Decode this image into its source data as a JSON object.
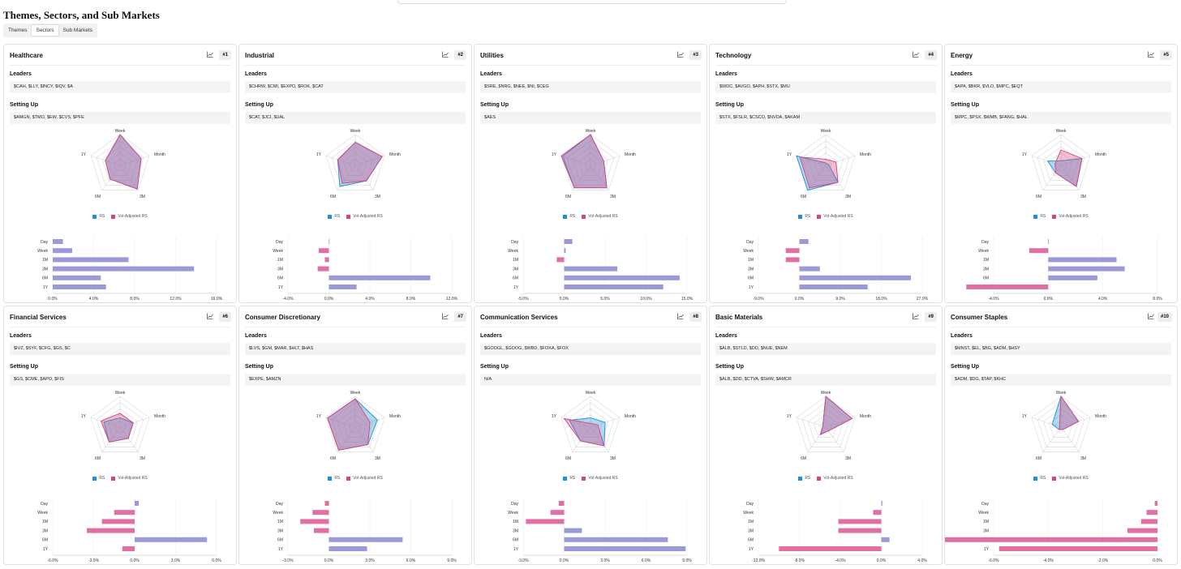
{
  "page": {
    "title": "Themes, Sectors, and Sub Markets",
    "tabs": [
      "Themes",
      "Sectors",
      "Sub Markets"
    ],
    "active_tab": "Sectors"
  },
  "labels": {
    "leaders": "Leaders",
    "setting_up": "Setting Up",
    "legend_rs": "RS",
    "legend_vol": "Vol-Adjusted RS",
    "axes": [
      "Week",
      "Month",
      "3M",
      "6M",
      "1Y"
    ],
    "periods": [
      "Day",
      "Week",
      "1M",
      "3M",
      "6M",
      "1Y"
    ]
  },
  "colors": {
    "rs": "#1f8fd6",
    "vol": "#d6457f",
    "bar_pos": "#9a9ad8",
    "bar_neg": "#e06fa3"
  },
  "icons": {
    "chart": "line-chart-icon"
  },
  "cards": [
    {
      "name": "Healthcare",
      "rank": "#1",
      "leaders": "$CAH, $LLY, $INCY, $IQV, $A",
      "setting_up": "$AMGN, $TMO, $EW, $CVS, $PFE",
      "radar_rs": [
        1.0,
        0.72,
        0.95,
        0.55,
        0.5
      ],
      "radar_vol": [
        1.0,
        0.72,
        0.95,
        0.55,
        0.5
      ],
      "ticks": [
        "0.0%",
        "4.0%",
        "8.0%",
        "12.0%",
        "16.0%"
      ],
      "tick_values": [
        0,
        4,
        8,
        12,
        16
      ],
      "bars": [
        1.0,
        1.9,
        7.4,
        13.8,
        4.7,
        5.2
      ]
    },
    {
      "name": "Industrial",
      "rank": "#2",
      "leaders": "$CHRW, $CMI, $EXPD, $ROK, $CAT",
      "setting_up": "$CAT, $JCI, $UAL",
      "radar_rs": [
        0.75,
        0.92,
        0.62,
        0.85,
        0.6
      ],
      "radar_vol": [
        0.75,
        0.92,
        0.62,
        0.72,
        0.6
      ],
      "ticks": [
        "-4.0%",
        "0.0%",
        "4.0%",
        "8.0%",
        "12.0%"
      ],
      "tick_values": [
        -4,
        0,
        4,
        8,
        12
      ],
      "bars": [
        0,
        -1.0,
        -0.4,
        -1.1,
        9.9,
        2.7
      ]
    },
    {
      "name": "Utilities",
      "rank": "#3",
      "leaders": "$SRE, $NRG, $NEE, $NI, $CEG",
      "setting_up": "$AES",
      "radar_rs": [
        1.0,
        0.45,
        0.9,
        0.9,
        0.95
      ],
      "radar_vol": [
        1.0,
        0.45,
        0.9,
        0.9,
        1.0
      ],
      "ticks": [
        "-5.0%",
        "0.0%",
        "5.0%",
        "10.0%",
        "15.0%"
      ],
      "tick_values": [
        -5,
        0,
        5,
        10,
        15
      ],
      "bars": [
        1.0,
        0.2,
        -0.9,
        6.5,
        14.1,
        12.1
      ]
    },
    {
      "name": "Technology",
      "rank": "#4",
      "leaders": "$WDC, $AVGO, $APH, $STX, $MU",
      "setting_up": "$STX, $FSLR, $CSCO, $NVDA, $AKAM",
      "radar_rs": [
        0.08,
        0.1,
        0.68,
        1.0,
        1.0
      ],
      "radar_vol": [
        0.2,
        0.35,
        0.68,
        0.9,
        0.88
      ],
      "ticks": [
        "-9.0%",
        "0.0%",
        "9.0%",
        "18.0%",
        "27.0%"
      ],
      "tick_values": [
        -9,
        0,
        9,
        18,
        27
      ],
      "bars": [
        2.0,
        -3.0,
        -3.0,
        4.5,
        24.5,
        15.0
      ]
    },
    {
      "name": "Energy",
      "rank": "#5",
      "leaders": "$APA, $BKR, $VLO, $MPC, $EQT",
      "setting_up": "$MPC, $PSX, $WMB, $FANG, $HAL",
      "radar_rs": [
        0.15,
        0.72,
        0.85,
        0.3,
        0.45
      ],
      "radar_vol": [
        0.5,
        0.72,
        0.85,
        0.3,
        0.2
      ],
      "ticks": [
        "-4.0%",
        "0.0%",
        "4.0%",
        "8.0%"
      ],
      "tick_values": [
        -4,
        0,
        4,
        8
      ],
      "bars": [
        0,
        -1.4,
        5.0,
        5.6,
        3.6,
        -6.0
      ]
    },
    {
      "name": "Financial Services",
      "rank": "#6",
      "leaders": "$IVZ, $SYF, $CFG, $GS, $C",
      "setting_up": "$GS, $CME, $APO, $FIS",
      "radar_rs": [
        0.3,
        0.45,
        0.45,
        0.6,
        0.55
      ],
      "radar_vol": [
        0.45,
        0.45,
        0.45,
        0.6,
        0.65
      ],
      "ticks": [
        "-6.0%",
        "-3.0%",
        "0.0%",
        "3.0%",
        "6.0%"
      ],
      "tick_values": [
        -6,
        -3,
        0,
        3,
        6
      ],
      "bars": [
        0.3,
        -1.5,
        -2.4,
        -3.5,
        5.3,
        -0.9
      ]
    },
    {
      "name": "Consumer Discretionary",
      "rank": "#7",
      "leaders": "$LVS, $GM, $MAR, $HLT, $HAS",
      "setting_up": "$EXPE, $AMZN",
      "radar_rs": [
        0.92,
        0.75,
        0.7,
        0.92,
        0.95
      ],
      "radar_vol": [
        0.92,
        0.5,
        0.7,
        0.92,
        0.95
      ],
      "ticks": [
        "-3.0%",
        "0.0%",
        "3.0%",
        "6.0%",
        "9.0%"
      ],
      "tick_values": [
        -3,
        0,
        3,
        6,
        9
      ],
      "bars": [
        -0.3,
        -1.2,
        -2.1,
        -1.1,
        5.4,
        2.8
      ]
    },
    {
      "name": "Communication Services",
      "rank": "#8",
      "leaders": "$GOOGL, $GOOG, $WBD, $FOXA, $FOX",
      "setting_up": "N/A",
      "radar_rs": [
        0.3,
        0.5,
        0.75,
        0.55,
        0.72
      ],
      "radar_vol": [
        0.12,
        0.25,
        0.75,
        0.55,
        0.9
      ],
      "ticks": [
        "-3.0%",
        "0.0%",
        "3.0%",
        "6.0%",
        "9.0%"
      ],
      "tick_values": [
        -3,
        0,
        3,
        6,
        9
      ],
      "bars": [
        -0.4,
        -1.0,
        -2.8,
        1.3,
        7.6,
        8.9
      ]
    },
    {
      "name": "Basic Materials",
      "rank": "#9",
      "leaders": "$ALB, $STLD, $DD, $NUE, $NEM",
      "setting_up": "$ALB, $DD, $CTVA, $SHW, $AMCR",
      "radar_rs": [
        1.0,
        0.9,
        0.15,
        0.3,
        0.1
      ],
      "radar_vol": [
        1.0,
        0.9,
        0.15,
        0.3,
        0.1
      ],
      "ticks": [
        "-12.0%",
        "-8.0%",
        "-4.0%",
        "0.0%",
        "4.0%"
      ],
      "tick_values": [
        -12,
        -8,
        -4,
        0,
        4
      ],
      "bars": [
        0.1,
        -0.8,
        -4.2,
        -4.2,
        0.8,
        -10.0
      ]
    },
    {
      "name": "Consumer Staples",
      "rank": "#10",
      "leaders": "$MNST, $EL, $BG, $ADM, $HSY",
      "setting_up": "$ADM, $DG, $TAP, $KHC",
      "radar_rs": [
        1.0,
        0.6,
        0.1,
        0.1,
        0.3
      ],
      "radar_vol": [
        1.0,
        0.6,
        0.1,
        0.1,
        0.05
      ],
      "ticks": [
        "-6.0%",
        "-4.0%",
        "-2.0%",
        "0.0%"
      ],
      "tick_values": [
        -6,
        -4,
        -2,
        0
      ],
      "bars": [
        -0.1,
        -0.4,
        -0.6,
        -1.1,
        -8.2,
        -5.8
      ]
    }
  ]
}
